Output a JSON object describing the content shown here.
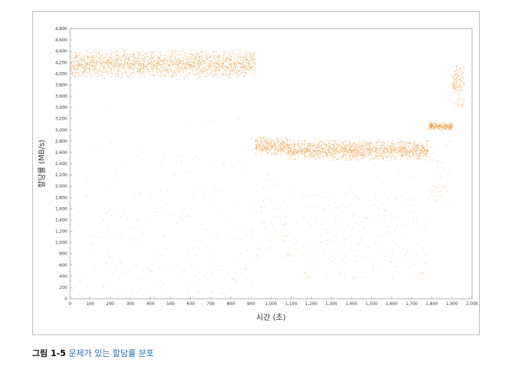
{
  "chart_data": {
    "type": "scatter",
    "xlabel": "시간 (초)",
    "ylabel": "할당률 (MB/s)",
    "xlim": [
      0,
      2000
    ],
    "ylim": [
      0,
      4800
    ],
    "x_ticks": [
      0,
      100,
      200,
      300,
      400,
      500,
      600,
      700,
      800,
      900,
      1000,
      1100,
      1200,
      1300,
      1400,
      1500,
      1600,
      1700,
      1800,
      1900,
      2000
    ],
    "x_tick_labels": [
      "0",
      "100",
      "200",
      "300",
      "400",
      "500",
      "600",
      "700",
      "800",
      "900",
      "1,000",
      "1,100",
      "1,200",
      "1,300",
      "1,400",
      "1,500",
      "1,600",
      "1,700",
      "1,800",
      "1,900",
      "2,000"
    ],
    "y_ticks": [
      0,
      200,
      400,
      600,
      800,
      1000,
      1200,
      1400,
      1600,
      1800,
      2000,
      2200,
      2400,
      2600,
      2800,
      3000,
      3200,
      3400,
      3600,
      3800,
      4000,
      4200,
      4400,
      4600,
      4800
    ],
    "y_tick_labels": [
      "0",
      "200",
      "400",
      "600",
      "800",
      "1,000",
      "1,200",
      "1,400",
      "1,600",
      "1,800",
      "2,000",
      "2,200",
      "2,400",
      "2,600",
      "2,800",
      "3,000",
      "3,200",
      "3,400",
      "3,600",
      "3,800",
      "4,000",
      "4,200",
      "4,400",
      "4,600",
      "4,800"
    ],
    "grid": false,
    "point_color": "#e8922e",
    "segments": [
      {
        "x_range": [
          0,
          920
        ],
        "dense_band": [
          3900,
          4450
        ],
        "sparse_range": [
          0,
          4700
        ]
      },
      {
        "x_range": [
          920,
          1080
        ],
        "dense_band": [
          2550,
          2900
        ],
        "sparse_range": [
          600,
          2950
        ]
      },
      {
        "x_range": [
          1080,
          1780
        ],
        "dense_band": [
          2450,
          2850
        ],
        "sparse_range": [
          350,
          3000
        ]
      },
      {
        "x_range": [
          1780,
          1900
        ],
        "dense_band": [
          3000,
          3150
        ],
        "sparse_range": [
          1700,
          3200
        ]
      },
      {
        "x_range": [
          1900,
          1960
        ],
        "dense_band": [
          3600,
          4200
        ],
        "sparse_range": [
          3400,
          4400
        ]
      }
    ]
  },
  "caption": {
    "label": "그림 1-5",
    "text": "문제가 있는 할당률 분포"
  }
}
